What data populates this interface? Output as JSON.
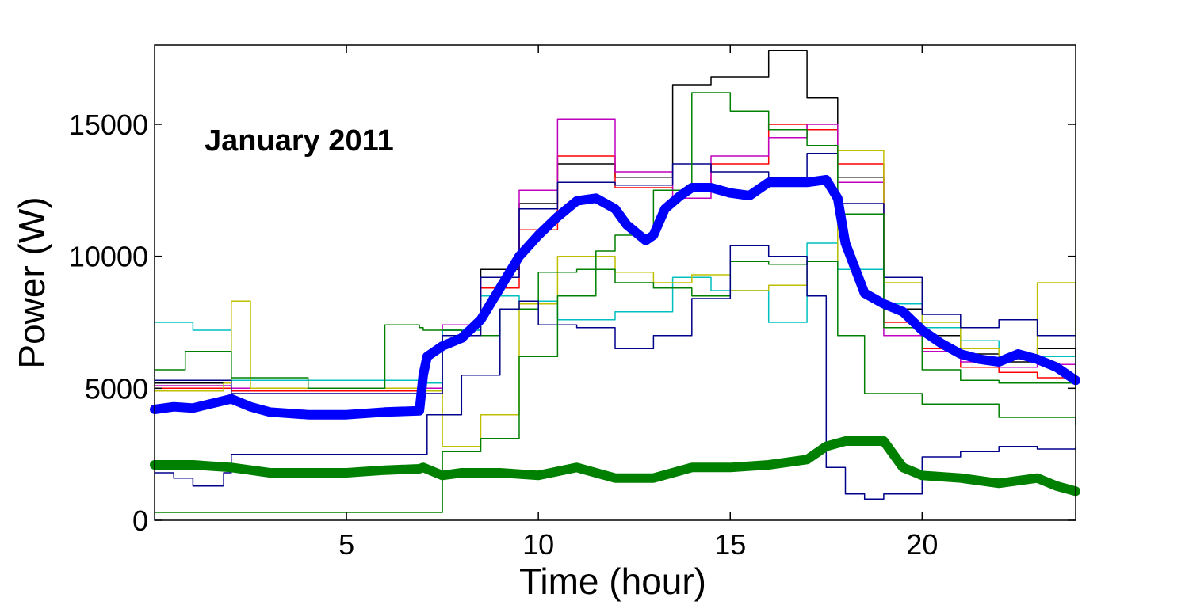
{
  "chart_data": {
    "type": "line",
    "annotation": "January 2011",
    "xlabel": "Time (hour)",
    "ylabel": "Power (W)",
    "xlim": [
      0,
      24
    ],
    "ylim": [
      0,
      18000
    ],
    "xticks": [
      5,
      10,
      15,
      20
    ],
    "yticks": [
      0,
      5000,
      10000,
      15000
    ],
    "grid": false,
    "series": [
      {
        "color": "#0000ff",
        "width": 12,
        "x": [
          0,
          0.5,
          1,
          2,
          2.5,
          3,
          4,
          5,
          6,
          6.9,
          7,
          7.1,
          7.5,
          8,
          8.5,
          9,
          9.5,
          10,
          10.5,
          11,
          11.5,
          12,
          12.3,
          12.8,
          13,
          13.3,
          13.7,
          14,
          14.5,
          15,
          15.5,
          16,
          16.5,
          17,
          17.5,
          17.8,
          18,
          18.5,
          19,
          19.5,
          20,
          20.5,
          21,
          21.5,
          22,
          22.5,
          23,
          23.5,
          24
        ],
        "y": [
          4200,
          4300,
          4250,
          4600,
          4300,
          4100,
          4000,
          4000,
          4100,
          4150,
          5500,
          6200,
          6600,
          6900,
          7600,
          8800,
          10000,
          10800,
          11500,
          12100,
          12200,
          11800,
          11200,
          10600,
          10800,
          11800,
          12300,
          12600,
          12600,
          12400,
          12300,
          12800,
          12800,
          12800,
          12900,
          12200,
          10500,
          8600,
          8200,
          7900,
          7200,
          6700,
          6300,
          6100,
          6000,
          6300,
          6100,
          5800,
          5300
        ]
      },
      {
        "color": "#008000",
        "width": 12,
        "x": [
          0,
          1,
          2,
          3,
          4,
          5,
          6,
          6.9,
          7,
          7.5,
          8,
          9,
          10,
          11,
          12,
          13,
          14,
          15,
          16,
          17,
          17.5,
          18,
          19,
          19.5,
          20,
          21,
          22,
          23,
          23.5,
          24
        ],
        "y": [
          2100,
          2100,
          2000,
          1800,
          1800,
          1800,
          1900,
          1950,
          2000,
          1700,
          1800,
          1800,
          1700,
          2000,
          1600,
          1600,
          2000,
          2000,
          2100,
          2300,
          2800,
          3000,
          3000,
          2000,
          1700,
          1600,
          1400,
          1600,
          1300,
          1100
        ]
      },
      {
        "color": "#000000",
        "width": 1.5,
        "x": [
          0,
          2,
          7,
          7.5,
          8.5,
          9.5,
          10.5,
          12,
          13.5,
          14.5,
          16,
          17,
          17.8,
          19,
          20,
          21,
          22,
          23,
          24
        ],
        "y": [
          5200,
          5000,
          5000,
          7200,
          9500,
          12000,
          13500,
          13000,
          16500,
          16800,
          17800,
          16000,
          13000,
          8000,
          7000,
          6300,
          6000,
          6500,
          6200
        ]
      },
      {
        "color": "#ff0000",
        "width": 1.5,
        "x": [
          0,
          2,
          7,
          7.5,
          8.5,
          9.5,
          10.5,
          12,
          13.5,
          14.5,
          16,
          17,
          17.8,
          19,
          20,
          21,
          22,
          23,
          24
        ],
        "y": [
          5000,
          4900,
          4900,
          7000,
          8800,
          11000,
          13800,
          12600,
          12500,
          13500,
          15000,
          14800,
          13500,
          7500,
          6500,
          5800,
          5600,
          5400,
          5300
        ]
      },
      {
        "color": "#bf00bf",
        "width": 1.5,
        "x": [
          0,
          2,
          7,
          7.5,
          8.5,
          9.5,
          10.5,
          12,
          13.5,
          14.5,
          16,
          17,
          17.8,
          19,
          20,
          21,
          22,
          23,
          24
        ],
        "y": [
          5100,
          5000,
          5000,
          7400,
          9200,
          12500,
          15200,
          13200,
          12200,
          13800,
          14500,
          15000,
          12800,
          7000,
          6400,
          6000,
          5800,
          5900,
          5600
        ]
      },
      {
        "color": "#00bfbf",
        "width": 1.5,
        "x": [
          0,
          1,
          2,
          7,
          7.5,
          8.5,
          9.5,
          10.5,
          12,
          13.5,
          14.5,
          16,
          17,
          17.8,
          19,
          20,
          21,
          22,
          24
        ],
        "y": [
          7500,
          7200,
          5300,
          5200,
          7200,
          8500,
          8300,
          7600,
          7900,
          9200,
          8700,
          7500,
          10500,
          9500,
          8200,
          7300,
          6800,
          6200,
          5200
        ]
      },
      {
        "color": "#bfbf00",
        "width": 1.5,
        "x": [
          0,
          1.8,
          2,
          2.5,
          7,
          7.5,
          8.5,
          9.5,
          10.5,
          12,
          13,
          14,
          15,
          16,
          17,
          17.8,
          19,
          20,
          21,
          22,
          23,
          24
        ],
        "y": [
          4900,
          5200,
          8300,
          5000,
          4900,
          2800,
          4000,
          8200,
          10000,
          9400,
          9000,
          9300,
          8700,
          8900,
          9800,
          14000,
          9000,
          7500,
          6500,
          6100,
          9000,
          7200
        ]
      },
      {
        "color": "#008000",
        "width": 1.5,
        "x": [
          0,
          0.8,
          2,
          4,
          6,
          6.9,
          7,
          8,
          9,
          10,
          11,
          12,
          13,
          14,
          15,
          16,
          17,
          17.8,
          18.5,
          20,
          22,
          24
        ],
        "y": [
          5700,
          6400,
          5400,
          5000,
          7400,
          7300,
          7200,
          7000,
          8000,
          9400,
          9500,
          9000,
          8800,
          8500,
          9800,
          9700,
          9800,
          7000,
          4800,
          4400,
          3900,
          3600
        ]
      },
      {
        "color": "#00008b",
        "width": 1.5,
        "x": [
          0,
          0.5,
          1,
          1.8,
          2,
          7,
          7.1,
          8,
          9,
          9.5,
          10,
          11,
          12,
          13,
          14,
          15,
          16,
          17,
          17.5,
          18,
          18.5,
          19,
          20,
          21,
          22,
          23,
          24
        ],
        "y": [
          1800,
          1600,
          1300,
          1800,
          2500,
          2500,
          4000,
          5500,
          8000,
          8300,
          7400,
          7300,
          6500,
          7000,
          8400,
          10400,
          10000,
          8500,
          2000,
          1000,
          800,
          1000,
          2400,
          2600,
          2800,
          2700,
          2800
        ]
      },
      {
        "color": "#00008b",
        "width": 1.5,
        "x": [
          0,
          2,
          7,
          7.5,
          8.5,
          9.5,
          10.5,
          12,
          13.5,
          14.5,
          16,
          17,
          17.8,
          19,
          20,
          21,
          22,
          23,
          24
        ],
        "y": [
          5300,
          4800,
          4800,
          7000,
          9200,
          11800,
          12800,
          12700,
          13500,
          13200,
          13000,
          13900,
          12000,
          9200,
          7800,
          7300,
          7600,
          7000,
          7000
        ]
      },
      {
        "color": "#008000",
        "width": 1.5,
        "x": [
          0,
          7,
          7.5,
          8.5,
          9.5,
          10.5,
          11.5,
          12,
          13,
          14,
          15,
          16,
          17,
          17.8,
          19,
          20,
          21,
          22,
          24
        ],
        "y": [
          300,
          300,
          2600,
          3100,
          6200,
          8500,
          10200,
          10800,
          12500,
          16200,
          15500,
          14800,
          14200,
          11600,
          7300,
          5700,
          5300,
          5200,
          5000
        ]
      }
    ]
  }
}
